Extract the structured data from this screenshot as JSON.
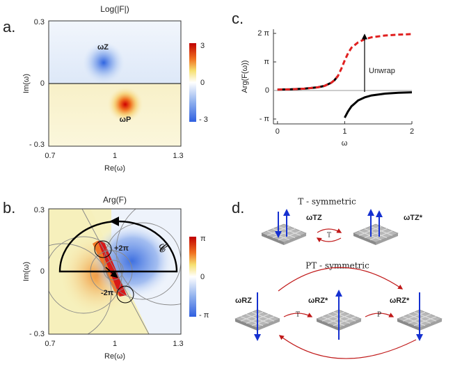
{
  "panel_a": {
    "label": "a.",
    "title": "Log(|F|)",
    "x_label": "Re(ω)",
    "y_label": "Im(ω)",
    "x_ticks": [
      "0.7",
      "1",
      "1.3"
    ],
    "y_ticks": [
      "0.3",
      "0",
      "- 0.3"
    ],
    "colorbar_ticks": [
      "3",
      "0",
      "- 3"
    ],
    "zero_label": "ωZ",
    "pole_label": "ωP"
  },
  "panel_b": {
    "label": "b.",
    "title": "Arg(F)",
    "x_label": "Re(ω)",
    "y_label": "Im(ω)",
    "x_ticks": [
      "0.7",
      "1",
      "1.3"
    ],
    "y_ticks": [
      "0.3",
      "0",
      "- 0.3"
    ],
    "colorbar_ticks": [
      "π",
      "0",
      "- π"
    ],
    "winding_labels": [
      "+2π",
      "-2π"
    ],
    "contour_label": "𝒞"
  },
  "chart_data": {
    "type": "line",
    "label": "c.",
    "x_label": "ω",
    "y_label": "Arg(F(ω))",
    "annotation": "Unwrap",
    "x": [
      0,
      0.2,
      0.4,
      0.6,
      0.7,
      0.8,
      0.85,
      0.9,
      0.95,
      1.0,
      1.05,
      1.1,
      1.2,
      1.3,
      1.4,
      1.6,
      1.8,
      2.0
    ],
    "xlim": [
      -0.06,
      2.0
    ],
    "xticks": [
      0,
      1,
      2
    ],
    "ylim": [
      -3.68,
      6.74
    ],
    "yticks": [
      {
        "value": -3.1416,
        "label": "- π"
      },
      0,
      {
        "value": 3.1416,
        "label": "π"
      },
      {
        "value": 6.2832,
        "label": "2 π"
      }
    ],
    "series": [
      {
        "color": "#000000",
        "style": "solid",
        "values": [
          0.1,
          0.13,
          0.2,
          0.35,
          0.5,
          0.85,
          1.15,
          1.6,
          null,
          -3.0,
          -2.3,
          -1.75,
          -1.1,
          -0.75,
          -0.55,
          -0.35,
          -0.25,
          -0.2
        ]
      },
      {
        "color": "#e02020",
        "style": "dashed",
        "values": [
          0.1,
          0.13,
          0.2,
          0.35,
          0.5,
          0.85,
          1.15,
          1.6,
          2.4,
          3.3,
          4.1,
          4.7,
          5.3,
          5.65,
          5.85,
          6.05,
          6.15,
          6.2
        ]
      }
    ]
  },
  "panel_d": {
    "label": "d.",
    "t_title": "T - symmetric",
    "t_states": [
      "ωTZ",
      "ωTZ*"
    ],
    "t_operator": "T",
    "pt_title": "PT - symmetric",
    "pt_states": [
      "ωRZ",
      "ωRZ*",
      "ωRZ*"
    ],
    "pt_operators": [
      "T",
      "P"
    ]
  }
}
